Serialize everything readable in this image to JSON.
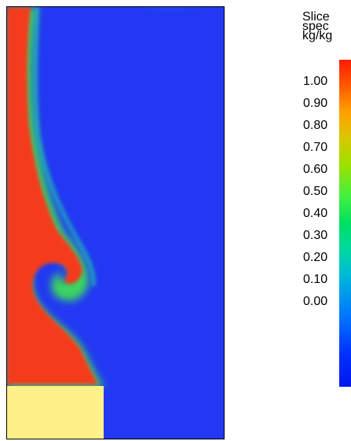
{
  "legend": {
    "title_lines": [
      "Slice",
      "spec",
      "kg/kg"
    ],
    "ticks": [
      "1.00",
      "0.90",
      "0.80",
      "0.70",
      "0.60",
      "0.50",
      "0.40",
      "0.30",
      "0.20",
      "0.10",
      "0.00"
    ]
  },
  "colors": {
    "background_blue": "#2238f2",
    "plume_red": "#f43a1e",
    "obstacle_yellow": "#fff08a",
    "mixing_green": "#40e050",
    "mixing_cyan": "#22c8b0"
  },
  "icons": {
    "simulation": "slice-field",
    "colorbar": "gradient-colorbar"
  }
}
